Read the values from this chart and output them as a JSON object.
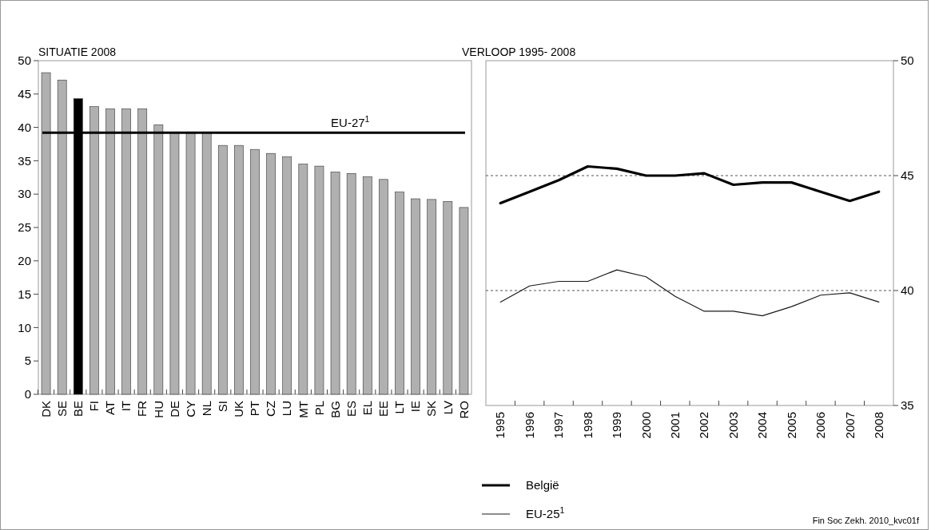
{
  "chart_data": [
    {
      "type": "bar",
      "title": "SITUATIE 2008",
      "categories": [
        "DK",
        "SE",
        "BE",
        "FI",
        "AT",
        "IT",
        "FR",
        "HU",
        "DE",
        "CY",
        "NL",
        "SI",
        "UK",
        "PT",
        "CZ",
        "LU",
        "MT",
        "PL",
        "BG",
        "ES",
        "EL",
        "EE",
        "LT",
        "IE",
        "SK",
        "LV",
        "RO"
      ],
      "values": [
        48.2,
        47.1,
        44.3,
        43.1,
        42.8,
        42.8,
        42.8,
        40.4,
        39.2,
        39.2,
        39.2,
        37.3,
        37.3,
        36.7,
        36.1,
        35.6,
        34.5,
        34.2,
        33.3,
        33.1,
        32.6,
        32.2,
        30.3,
        29.3,
        29.2,
        28.9,
        28.0
      ],
      "colors": [
        "#b0b0b0",
        "#b0b0b0",
        "#000000",
        "#b0b0b0",
        "#b0b0b0",
        "#b0b0b0",
        "#b0b0b0",
        "#b0b0b0",
        "#b0b0b0",
        "#b0b0b0",
        "#b0b0b0",
        "#b0b0b0",
        "#b0b0b0",
        "#b0b0b0",
        "#b0b0b0",
        "#b0b0b0",
        "#b0b0b0",
        "#b0b0b0",
        "#b0b0b0",
        "#b0b0b0",
        "#b0b0b0",
        "#b0b0b0",
        "#b0b0b0",
        "#b0b0b0",
        "#b0b0b0",
        "#b0b0b0",
        "#b0b0b0"
      ],
      "ylim": [
        0,
        50
      ],
      "yticks": [
        0,
        5,
        10,
        15,
        20,
        25,
        30,
        35,
        40,
        45,
        50
      ],
      "ref_lines": [
        {
          "axis": "y",
          "value": 39.2,
          "label": "EU-27$^{1}$",
          "color": "#000000"
        }
      ]
    },
    {
      "type": "line",
      "title": "VERLOOP 1995- 2008",
      "categories": [
        "1995",
        "1996",
        "1997",
        "1998",
        "1999",
        "2000",
        "2001",
        "2002",
        "2003",
        "2004",
        "2005",
        "2006",
        "2007",
        "2008"
      ],
      "series": [
        {
          "name": "België",
          "color": "#000000",
          "values": [
            43.8,
            44.3,
            44.8,
            45.4,
            45.3,
            45.0,
            45.0,
            45.1,
            44.6,
            44.7,
            44.7,
            44.3,
            43.9,
            44.3
          ]
        },
        {
          "name": "EU-25$^{1}$",
          "color": "#1a1a1a",
          "values": [
            39.5,
            40.2,
            40.4,
            40.4,
            40.9,
            40.6,
            39.75,
            39.1,
            39.1,
            38.9,
            39.3,
            39.8,
            39.9,
            39.5
          ]
        }
      ],
      "ylim": [
        35,
        50
      ],
      "yticks": [
        35,
        40,
        45,
        50
      ],
      "grid": "y",
      "legend": "bottom",
      "annotations": [
        "Fin Soc Zekh. 2010_kvc01f"
      ]
    }
  ]
}
